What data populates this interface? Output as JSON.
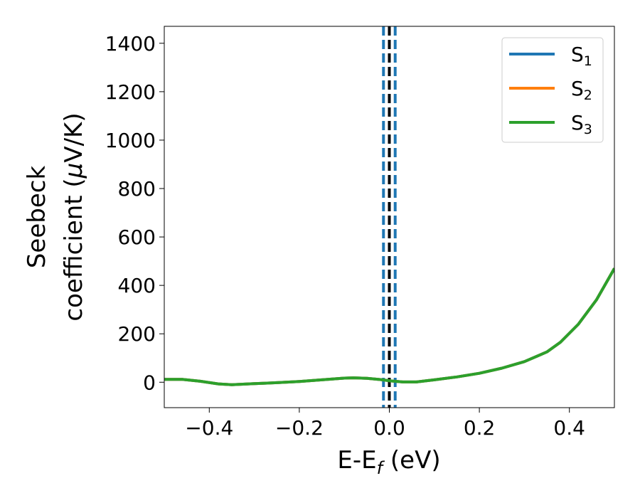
{
  "chart_data": {
    "type": "line",
    "xlabel": "E-E",
    "xlabel_sub": "f",
    "xlabel_unit": " (eV)",
    "ylabel_line1": "Seebeck",
    "ylabel_line2": "coefficient  (",
    "ylabel_mu": "μ",
    "ylabel_unit": "V/K)",
    "xlim": [
      -0.5,
      0.5
    ],
    "ylim": [
      -105,
      1470
    ],
    "xticks": [
      -0.4,
      -0.2,
      0.0,
      0.2,
      0.4
    ],
    "xtick_labels": [
      "−0.4",
      "−0.2",
      "0.0",
      "0.2",
      "0.4"
    ],
    "yticks": [
      0,
      200,
      400,
      600,
      800,
      1000,
      1200,
      1400
    ],
    "ytick_labels": [
      "0",
      "200",
      "400",
      "600",
      "800",
      "1000",
      "1200",
      "1400"
    ],
    "grid": false,
    "legend_position": "top-right",
    "series": [
      {
        "name": "S",
        "sub": "1",
        "color": "#1f77b4",
        "x": [
          -0.5,
          -0.46,
          -0.42,
          -0.38,
          -0.35,
          -0.3,
          -0.25,
          -0.2,
          -0.15,
          -0.1,
          -0.08,
          -0.05,
          -0.02,
          0.0,
          0.03,
          0.06,
          0.1,
          0.15,
          0.2,
          0.25,
          0.3,
          0.35,
          0.38,
          0.42,
          0.46,
          0.5
        ],
        "y": [
          12,
          12,
          4,
          -7,
          -10,
          -6,
          -2,
          3,
          10,
          17,
          18,
          16,
          11,
          6,
          1,
          1,
          10,
          22,
          37,
          58,
          85,
          125,
          165,
          240,
          340,
          470
        ]
      },
      {
        "name": "S",
        "sub": "2",
        "color": "#ff7f0e",
        "x": [
          -0.5,
          -0.46,
          -0.42,
          -0.38,
          -0.35,
          -0.3,
          -0.25,
          -0.2,
          -0.15,
          -0.1,
          -0.08,
          -0.05,
          -0.02,
          0.0,
          0.03,
          0.06,
          0.1,
          0.15,
          0.2,
          0.25,
          0.3,
          0.35,
          0.38,
          0.42,
          0.46,
          0.5
        ],
        "y": [
          12,
          12,
          4,
          -7,
          -10,
          -6,
          -2,
          3,
          10,
          17,
          18,
          16,
          11,
          6,
          1,
          1,
          10,
          22,
          37,
          58,
          85,
          125,
          165,
          240,
          340,
          470
        ]
      },
      {
        "name": "S",
        "sub": "3",
        "color": "#2ca02c",
        "x": [
          -0.5,
          -0.46,
          -0.42,
          -0.38,
          -0.35,
          -0.3,
          -0.25,
          -0.2,
          -0.15,
          -0.1,
          -0.08,
          -0.05,
          -0.02,
          0.0,
          0.03,
          0.06,
          0.1,
          0.15,
          0.2,
          0.25,
          0.3,
          0.35,
          0.38,
          0.42,
          0.46,
          0.5
        ],
        "y": [
          12,
          12,
          4,
          -7,
          -10,
          -6,
          -2,
          3,
          10,
          17,
          18,
          16,
          11,
          6,
          1,
          1,
          10,
          22,
          37,
          58,
          85,
          125,
          165,
          240,
          340,
          470
        ]
      }
    ],
    "vlines": [
      {
        "x": 0.0,
        "color": "#000000",
        "style": "dashed"
      },
      {
        "x": -0.013,
        "color": "#1f77b4",
        "style": "dashed"
      },
      {
        "x": 0.013,
        "color": "#1f77b4",
        "style": "dashed"
      }
    ]
  }
}
